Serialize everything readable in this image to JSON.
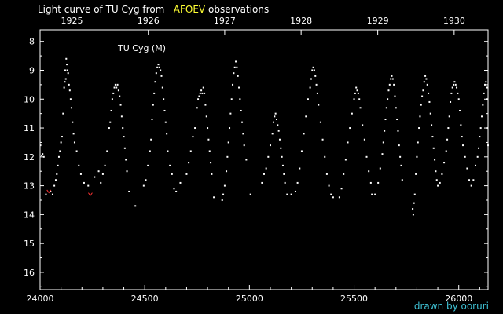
{
  "header": {
    "title_prefix": "Light curve of TU Cyg from",
    "title_source": "AFOEV",
    "title_suffix": "observations"
  },
  "credit": "drawn by ooruri",
  "chart_data": {
    "type": "scatter",
    "title": "Light curve of TU Cyg from AFOEV observations",
    "panel_label": "TU Cyg (M)",
    "xlabel": "",
    "ylabel": "",
    "xlim": [
      24000,
      26140
    ],
    "ylim": [
      16.6,
      7.6
    ],
    "y_inverted": true,
    "grid": false,
    "x_ticks": [
      24000,
      24500,
      25000,
      25500,
      26000
    ],
    "y_ticks": [
      8,
      9,
      10,
      11,
      12,
      13,
      14,
      15,
      16
    ],
    "top_axis_years": [
      {
        "label": "1925",
        "jd": 24152
      },
      {
        "label": "1926",
        "jd": 24517
      },
      {
        "label": "1927",
        "jd": 24882
      },
      {
        "label": "1928",
        "jd": 25247
      },
      {
        "label": "1929",
        "jd": 25613
      },
      {
        "label": "1930",
        "jd": 25978
      }
    ],
    "colors": {
      "observation": "#ffffff",
      "upper_limit": "#ff3333",
      "axes": "#ffffff"
    },
    "series": [
      {
        "marker": "dot",
        "points": [
          [
            24002,
            11.6
          ],
          [
            24008,
            11.95
          ],
          [
            24012,
            11.9
          ],
          [
            24018,
            12.0
          ],
          [
            24028,
            13.3
          ],
          [
            24050,
            13.2
          ],
          [
            24060,
            13.3
          ],
          [
            24068,
            13.0
          ],
          [
            24075,
            12.8
          ],
          [
            24080,
            12.6
          ],
          [
            24085,
            12.3
          ],
          [
            24090,
            12.0
          ],
          [
            24095,
            11.8
          ],
          [
            24100,
            11.5
          ],
          [
            24105,
            11.3
          ],
          [
            24110,
            10.5
          ],
          [
            24115,
            9.6
          ],
          [
            24118,
            9.4
          ],
          [
            24120,
            9.0
          ],
          [
            24123,
            9.3
          ],
          [
            24125,
            8.6
          ],
          [
            24128,
            8.8
          ],
          [
            24130,
            9.0
          ],
          [
            24134,
            9.1
          ],
          [
            24138,
            9.5
          ],
          [
            24142,
            9.7
          ],
          [
            24146,
            10.0
          ],
          [
            24150,
            10.3
          ],
          [
            24155,
            10.8
          ],
          [
            24160,
            11.2
          ],
          [
            24165,
            11.5
          ],
          [
            24175,
            11.8
          ],
          [
            24185,
            12.3
          ],
          [
            24195,
            12.6
          ],
          [
            24210,
            12.9
          ],
          [
            24230,
            13.0
          ],
          [
            24260,
            12.7
          ],
          [
            24280,
            12.5
          ],
          [
            24290,
            12.9
          ],
          [
            24300,
            12.6
          ],
          [
            24310,
            12.3
          ],
          [
            24320,
            11.8
          ],
          [
            24330,
            11.0
          ],
          [
            24335,
            10.8
          ],
          [
            24340,
            10.4
          ],
          [
            24345,
            10.0
          ],
          [
            24350,
            9.8
          ],
          [
            24355,
            9.6
          ],
          [
            24360,
            9.5
          ],
          [
            24365,
            9.6
          ],
          [
            24370,
            9.5
          ],
          [
            24375,
            9.7
          ],
          [
            24380,
            9.9
          ],
          [
            24385,
            10.2
          ],
          [
            24390,
            10.6
          ],
          [
            24395,
            11.0
          ],
          [
            24400,
            11.3
          ],
          [
            24405,
            11.7
          ],
          [
            24410,
            12.1
          ],
          [
            24415,
            12.5
          ],
          [
            24425,
            13.2
          ],
          [
            24455,
            13.7
          ],
          [
            24495,
            13.0
          ],
          [
            24505,
            12.8
          ],
          [
            24515,
            12.3
          ],
          [
            24525,
            11.8
          ],
          [
            24530,
            11.4
          ],
          [
            24535,
            10.7
          ],
          [
            24540,
            10.2
          ],
          [
            24545,
            9.8
          ],
          [
            24550,
            9.4
          ],
          [
            24555,
            9.1
          ],
          [
            24560,
            8.9
          ],
          [
            24565,
            8.8
          ],
          [
            24570,
            8.9
          ],
          [
            24575,
            9.0
          ],
          [
            24580,
            9.2
          ],
          [
            24585,
            9.6
          ],
          [
            24590,
            10.0
          ],
          [
            24595,
            10.4
          ],
          [
            24600,
            10.8
          ],
          [
            24605,
            11.2
          ],
          [
            24610,
            11.8
          ],
          [
            24620,
            12.3
          ],
          [
            24630,
            12.6
          ],
          [
            24640,
            13.1
          ],
          [
            24650,
            13.2
          ],
          [
            24670,
            12.9
          ],
          [
            24700,
            12.6
          ],
          [
            24710,
            12.2
          ],
          [
            24720,
            11.8
          ],
          [
            24730,
            11.3
          ],
          [
            24740,
            11.0
          ],
          [
            24750,
            10.3
          ],
          [
            24755,
            10.0
          ],
          [
            24760,
            9.9
          ],
          [
            24765,
            9.8
          ],
          [
            24770,
            9.7
          ],
          [
            24775,
            9.8
          ],
          [
            24780,
            9.6
          ],
          [
            24785,
            9.8
          ],
          [
            24790,
            10.2
          ],
          [
            24795,
            10.6
          ],
          [
            24800,
            11.0
          ],
          [
            24805,
            11.4
          ],
          [
            24810,
            11.8
          ],
          [
            24815,
            12.2
          ],
          [
            24820,
            12.6
          ],
          [
            24830,
            13.4
          ],
          [
            24870,
            13.5
          ],
          [
            24875,
            13.3
          ],
          [
            24882,
            13.0
          ],
          [
            24890,
            12.5
          ],
          [
            24895,
            12.0
          ],
          [
            24900,
            11.5
          ],
          [
            24905,
            11.0
          ],
          [
            24910,
            10.5
          ],
          [
            24915,
            10.0
          ],
          [
            24920,
            9.5
          ],
          [
            24925,
            9.1
          ],
          [
            24930,
            8.9
          ],
          [
            24935,
            8.7
          ],
          [
            24940,
            8.9
          ],
          [
            24945,
            9.2
          ],
          [
            24950,
            9.6
          ],
          [
            24955,
            10.0
          ],
          [
            24960,
            10.4
          ],
          [
            24965,
            10.8
          ],
          [
            24970,
            11.2
          ],
          [
            24975,
            11.6
          ],
          [
            24985,
            12.1
          ],
          [
            25005,
            13.3
          ],
          [
            25060,
            12.9
          ],
          [
            25070,
            12.6
          ],
          [
            25080,
            12.4
          ],
          [
            25090,
            12.0
          ],
          [
            25100,
            11.6
          ],
          [
            25110,
            11.2
          ],
          [
            25115,
            10.8
          ],
          [
            25120,
            10.6
          ],
          [
            25125,
            10.5
          ],
          [
            25130,
            10.7
          ],
          [
            25135,
            10.9
          ],
          [
            25140,
            11.1
          ],
          [
            25145,
            11.4
          ],
          [
            25150,
            11.7
          ],
          [
            25155,
            12.0
          ],
          [
            25160,
            12.3
          ],
          [
            25165,
            12.6
          ],
          [
            25170,
            12.9
          ],
          [
            25180,
            13.3
          ],
          [
            25200,
            13.3
          ],
          [
            25220,
            13.2
          ],
          [
            25230,
            12.9
          ],
          [
            25240,
            12.4
          ],
          [
            25250,
            11.8
          ],
          [
            25260,
            11.2
          ],
          [
            25270,
            10.6
          ],
          [
            25280,
            10.0
          ],
          [
            25290,
            9.6
          ],
          [
            25295,
            9.3
          ],
          [
            25300,
            9.0
          ],
          [
            25305,
            8.9
          ],
          [
            25310,
            9.0
          ],
          [
            25315,
            9.2
          ],
          [
            25320,
            9.5
          ],
          [
            25325,
            9.8
          ],
          [
            25330,
            10.2
          ],
          [
            25340,
            10.8
          ],
          [
            25350,
            11.4
          ],
          [
            25360,
            12.0
          ],
          [
            25370,
            12.6
          ],
          [
            25380,
            13.0
          ],
          [
            25390,
            13.3
          ],
          [
            25400,
            13.4
          ],
          [
            25430,
            13.4
          ],
          [
            25440,
            13.1
          ],
          [
            25450,
            12.6
          ],
          [
            25460,
            12.1
          ],
          [
            25470,
            11.5
          ],
          [
            25480,
            11.0
          ],
          [
            25490,
            10.5
          ],
          [
            25500,
            10.0
          ],
          [
            25505,
            9.8
          ],
          [
            25510,
            9.6
          ],
          [
            25515,
            9.7
          ],
          [
            25520,
            9.8
          ],
          [
            25525,
            10.0
          ],
          [
            25530,
            10.3
          ],
          [
            25540,
            10.9
          ],
          [
            25550,
            11.4
          ],
          [
            25560,
            12.0
          ],
          [
            25570,
            12.5
          ],
          [
            25580,
            12.9
          ],
          [
            25585,
            13.3
          ],
          [
            25600,
            13.3
          ],
          [
            25615,
            12.9
          ],
          [
            25625,
            12.4
          ],
          [
            25635,
            11.9
          ],
          [
            25640,
            11.5
          ],
          [
            25645,
            11.1
          ],
          [
            25650,
            10.7
          ],
          [
            25655,
            10.3
          ],
          [
            25660,
            10.0
          ],
          [
            25665,
            9.7
          ],
          [
            25670,
            9.5
          ],
          [
            25675,
            9.3
          ],
          [
            25680,
            9.2
          ],
          [
            25685,
            9.3
          ],
          [
            25690,
            9.5
          ],
          [
            25695,
            9.9
          ],
          [
            25700,
            10.3
          ],
          [
            25705,
            10.7
          ],
          [
            25710,
            11.1
          ],
          [
            25715,
            11.6
          ],
          [
            25720,
            12.0
          ],
          [
            25725,
            12.3
          ],
          [
            25730,
            12.8
          ],
          [
            25780,
            13.8
          ],
          [
            25783,
            14.0
          ],
          [
            25786,
            13.6
          ],
          [
            25790,
            13.3
          ],
          [
            25795,
            12.6
          ],
          [
            25800,
            12.0
          ],
          [
            25805,
            11.5
          ],
          [
            25810,
            11.0
          ],
          [
            25815,
            10.6
          ],
          [
            25820,
            10.2
          ],
          [
            25825,
            9.9
          ],
          [
            25830,
            9.7
          ],
          [
            25835,
            9.4
          ],
          [
            25840,
            9.2
          ],
          [
            25845,
            9.3
          ],
          [
            25850,
            9.5
          ],
          [
            25855,
            9.8
          ],
          [
            25860,
            10.1
          ],
          [
            25865,
            10.5
          ],
          [
            25870,
            10.9
          ],
          [
            25875,
            11.3
          ],
          [
            25880,
            11.7
          ],
          [
            25885,
            12.1
          ],
          [
            25890,
            12.5
          ],
          [
            25895,
            12.8
          ],
          [
            25900,
            13.0
          ],
          [
            25910,
            12.9
          ],
          [
            25920,
            12.6
          ],
          [
            25930,
            12.2
          ],
          [
            25940,
            11.8
          ],
          [
            25945,
            11.4
          ],
          [
            25950,
            11.0
          ],
          [
            25955,
            10.6
          ],
          [
            25960,
            10.1
          ],
          [
            25965,
            9.8
          ],
          [
            25970,
            9.6
          ],
          [
            25975,
            9.5
          ],
          [
            25980,
            9.4
          ],
          [
            25985,
            9.5
          ],
          [
            25990,
            9.6
          ],
          [
            25995,
            9.8
          ],
          [
            26000,
            10.0
          ],
          [
            26005,
            10.4
          ],
          [
            26010,
            10.9
          ],
          [
            26015,
            11.3
          ],
          [
            26020,
            11.6
          ],
          [
            26030,
            12.0
          ],
          [
            26040,
            12.4
          ],
          [
            26050,
            12.8
          ],
          [
            26060,
            13.0
          ],
          [
            26070,
            12.8
          ],
          [
            26080,
            12.3
          ],
          [
            26090,
            12.0
          ],
          [
            26095,
            11.7
          ],
          [
            26100,
            11.3
          ],
          [
            26105,
            11.0
          ],
          [
            26110,
            10.6
          ],
          [
            26115,
            10.2
          ],
          [
            26120,
            9.8
          ],
          [
            26125,
            9.5
          ],
          [
            26130,
            9.4
          ],
          [
            26135,
            9.6
          ],
          [
            26140,
            11.6
          ],
          [
            26138,
            11.0
          ],
          [
            26136,
            10.0
          ]
        ]
      },
      {
        "marker": "v",
        "points": [
          [
            24042,
            13.2
          ],
          [
            24240,
            13.3
          ]
        ]
      }
    ]
  }
}
